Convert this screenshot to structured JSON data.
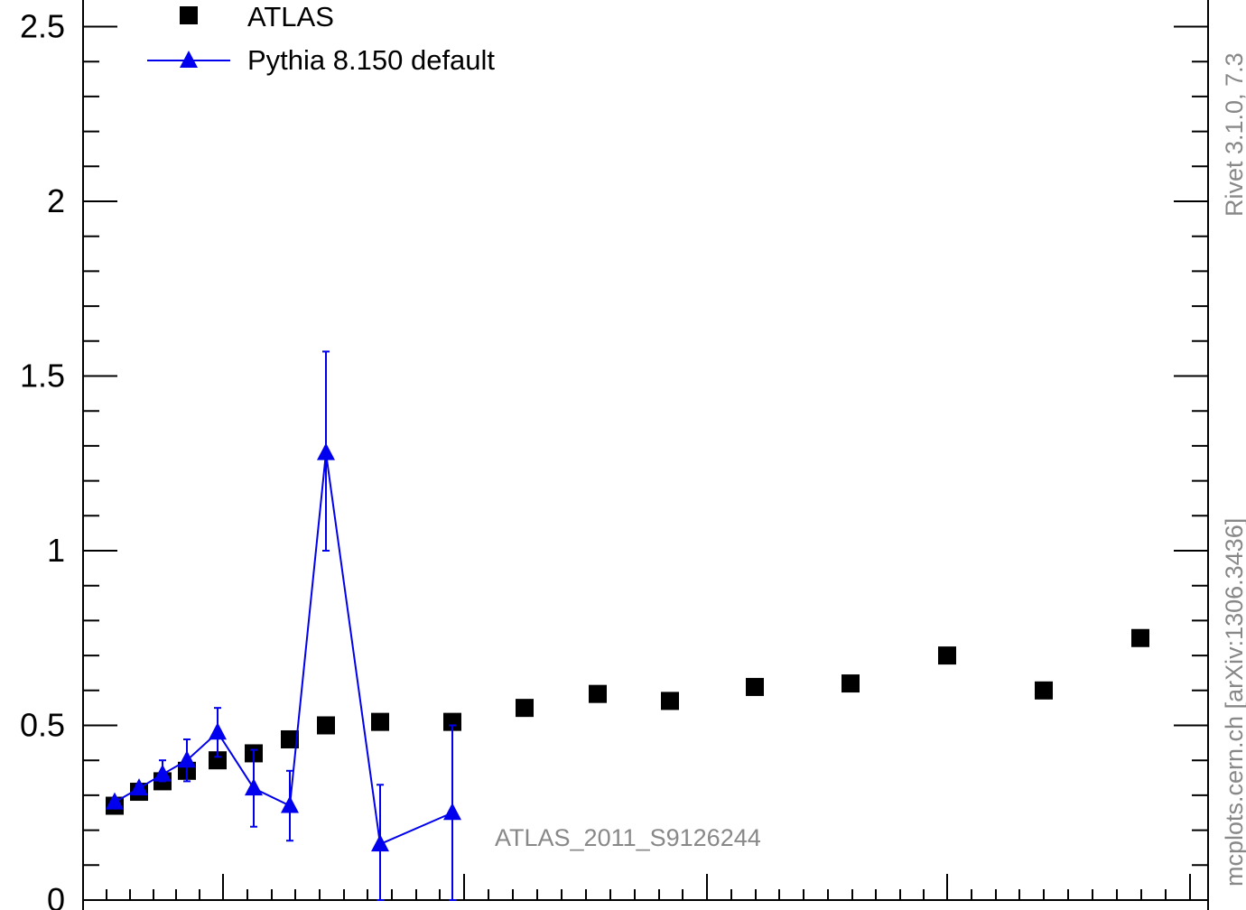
{
  "chart_data": {
    "type": "scatter",
    "title": "",
    "xlabel": "",
    "ylabel": "",
    "ylim": [
      0,
      2.6
    ],
    "y_ticks": [
      "0",
      "0.5",
      "1",
      "1.5",
      "2",
      "2.5"
    ],
    "grid": false,
    "legend_position": "top-left",
    "analysis_label": "ATLAS_2011_S9126244",
    "side_labels": {
      "rivet": "Rivet 3.1.0,  7.3",
      "source": "mcplots.cern.ch [arXiv:1306.3436]"
    },
    "series": [
      {
        "name": "ATLAS",
        "style": "markers",
        "marker": "square",
        "color": "#000000",
        "x": [
          1,
          2,
          3,
          4,
          5,
          6,
          7,
          8,
          9,
          10,
          11,
          12,
          13,
          14,
          15,
          16,
          17,
          18
        ],
        "y": [
          0.27,
          0.31,
          0.34,
          0.37,
          0.4,
          0.42,
          0.46,
          0.5,
          0.51,
          0.51,
          0.55,
          0.59,
          0.57,
          0.61,
          0.62,
          0.7,
          0.6,
          0.75
        ]
      },
      {
        "name": "Pythia 8.150 default",
        "style": "line+markers",
        "marker": "triangle",
        "color": "#0000ee",
        "x": [
          1,
          2,
          3,
          4,
          5,
          6,
          7,
          8,
          9,
          10
        ],
        "y": [
          0.28,
          0.32,
          0.36,
          0.4,
          0.48,
          0.32,
          0.27,
          1.28,
          0.16,
          0.25
        ],
        "yerr_low": [
          0.01,
          0.01,
          0.02,
          0.06,
          0.07,
          0.11,
          0.1,
          0.28,
          0.16,
          0.25
        ],
        "yerr_high": [
          0.01,
          0.01,
          0.04,
          0.06,
          0.07,
          0.11,
          0.1,
          0.29,
          0.17,
          0.25
        ]
      }
    ]
  }
}
